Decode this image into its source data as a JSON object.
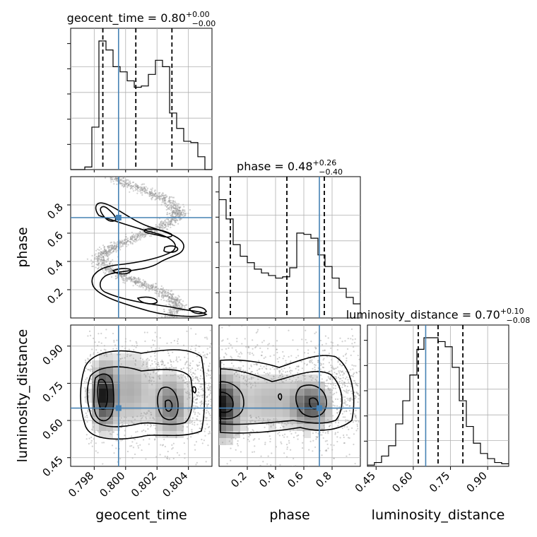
{
  "colors": {
    "truth": "#4682b4",
    "grid": "#b0b0b0",
    "line": "#000000"
  },
  "chart_data": {
    "type": "corner",
    "parameters": [
      {
        "name": "geocent_time",
        "axis_label": "geocent_time",
        "title_prefix": "geocent_time = 0.80",
        "title_plus": "+0.00",
        "title_minus": "−0.00",
        "range": [
          0.7965,
          0.8055
        ],
        "ticks": [
          0.798,
          0.8,
          0.802,
          0.804
        ],
        "tick_labels": [
          "0.798",
          "0.800",
          "0.802",
          "0.804"
        ],
        "quantiles": [
          0.79855,
          0.80065,
          0.80295
        ],
        "truth": 0.79955,
        "hist_edges": [
          0.7965,
          0.79695,
          0.7974,
          0.79785,
          0.7983,
          0.79875,
          0.7992,
          0.79965,
          0.8001,
          0.80055,
          0.801,
          0.80145,
          0.8019,
          0.80235,
          0.8028,
          0.80325,
          0.8037,
          0.80415,
          0.8046,
          0.80505,
          0.8055
        ],
        "hist_values": [
          0,
          0,
          0.02,
          0.33,
          1.0,
          0.93,
          0.8,
          0.76,
          0.69,
          0.64,
          0.65,
          0.74,
          0.85,
          0.8,
          0.44,
          0.32,
          0.22,
          0.21,
          0.1,
          0
        ]
      },
      {
        "name": "phase",
        "axis_label": "phase",
        "title_prefix": "phase = 0.48",
        "title_plus": "+0.26",
        "title_minus": "−0.40",
        "range": [
          0.0,
          1.0
        ],
        "ticks": [
          0.2,
          0.4,
          0.6,
          0.8
        ],
        "tick_labels": [
          "0.2",
          "0.4",
          "0.6",
          "0.8"
        ],
        "quantiles": [
          0.08,
          0.48,
          0.745
        ],
        "truth": 0.71,
        "hist_edges": [
          0.0,
          0.05,
          0.1,
          0.15,
          0.2,
          0.25,
          0.3,
          0.35,
          0.4,
          0.45,
          0.5,
          0.55,
          0.6,
          0.65,
          0.7,
          0.75,
          0.8,
          0.85,
          0.9,
          0.95,
          1.0
        ],
        "hist_values": [
          0.92,
          0.77,
          0.57,
          0.48,
          0.43,
          0.38,
          0.35,
          0.33,
          0.31,
          0.32,
          0.39,
          0.66,
          0.65,
          0.62,
          0.49,
          0.4,
          0.31,
          0.23,
          0.16,
          0.11
        ]
      },
      {
        "name": "luminosity_distance",
        "axis_label": "luminosity_distance",
        "title_prefix": "luminosity_distance = 0.70",
        "title_plus": "+0.10",
        "title_minus": "−0.08",
        "range": [
          0.415,
          0.985
        ],
        "ticks": [
          0.45,
          0.6,
          0.75,
          0.9
        ],
        "tick_labels": [
          "0.45",
          "0.60",
          "0.75",
          "0.90"
        ],
        "quantiles": [
          0.62,
          0.7,
          0.8
        ],
        "truth": 0.65,
        "hist_edges": [
          0.415,
          0.4435,
          0.472,
          0.5005,
          0.529,
          0.5575,
          0.586,
          0.6145,
          0.643,
          0.6715,
          0.7,
          0.7285,
          0.757,
          0.7855,
          0.814,
          0.8425,
          0.871,
          0.8995,
          0.928,
          0.9565,
          0.985
        ],
        "hist_values": [
          0.01,
          0.03,
          0.08,
          0.16,
          0.33,
          0.51,
          0.71,
          0.91,
          1.0,
          1.0,
          0.97,
          0.93,
          0.77,
          0.51,
          0.31,
          0.18,
          0.1,
          0.06,
          0.03,
          0.02
        ]
      }
    ],
    "grid": true
  }
}
